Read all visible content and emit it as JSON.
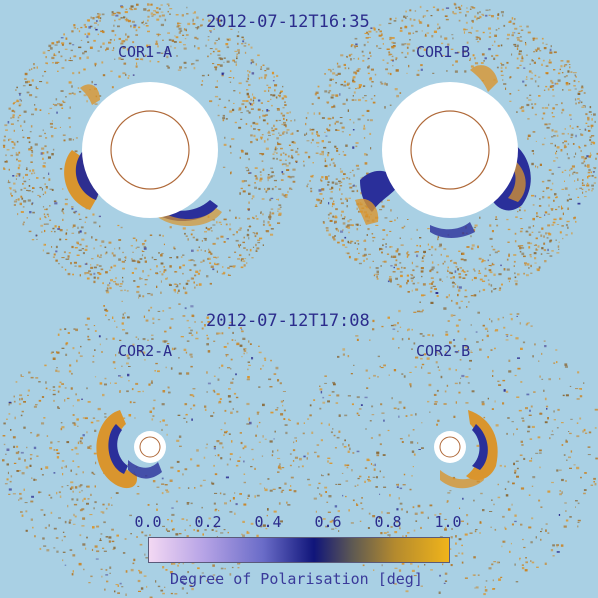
{
  "panels": {
    "top_timestamp": "2012-07-12T16:35",
    "bottom_timestamp": "2012-07-12T17:08",
    "labels": [
      "COR1-A",
      "COR1-B",
      "COR2-A",
      "COR2-B"
    ]
  },
  "colorbar": {
    "title": "Degree of Polarisation [deg]",
    "ticks": [
      "0.0",
      "0.2",
      "0.4",
      "0.6",
      "0.8",
      "1.0"
    ],
    "colors": [
      "#f3d8f3",
      "#6a6cc8",
      "#10157a",
      "#b48a2e",
      "#f0b41a"
    ]
  },
  "palette": {
    "background": "#a9d0e4",
    "speckle": "#c8862a",
    "blue": "#2a2f9a",
    "occulter": "#ffffff",
    "limb": "#b06a3a"
  }
}
